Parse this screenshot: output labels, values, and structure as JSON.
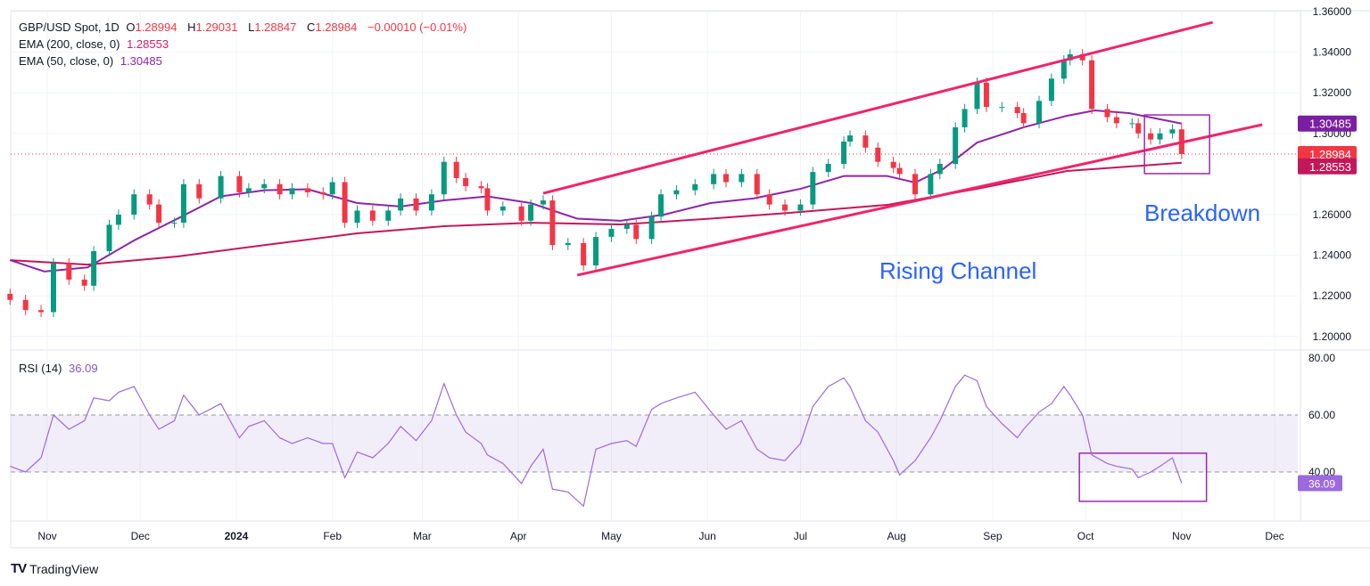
{
  "header": {
    "symbol": "GBP/USD Spot, 1D",
    "o_label": "O",
    "o": "1.28994",
    "h_label": "H",
    "h": "1.29031",
    "l_label": "L",
    "l": "1.28847",
    "c_label": "C",
    "c": "1.28984",
    "change": "−0.00010 (−0.01%)",
    "ema200_label": "EMA (200, close, 0)",
    "ema200_value": "1.28553",
    "ema50_label": "EMA (50, close, 0)",
    "ema50_value": "1.30485",
    "rsi_label": "RSI (14)",
    "rsi_value": "36.09"
  },
  "annotations": {
    "rising_channel": "Rising Channel",
    "breakdown": "Breakdown"
  },
  "brand": "TradingView",
  "colors": {
    "up": "#089981",
    "down": "#f23645",
    "ema50": "#8e24aa",
    "ema200": "#c2185b",
    "channel": "#f0246b",
    "rsi": "#9c6ade",
    "box": "#9c27b0",
    "text_blue": "#2962ff"
  },
  "chart_data": {
    "type": "candlestick",
    "price_ticks": [
      "1.36000",
      "1.34000",
      "1.32000",
      "1.30000",
      "1.26000",
      "1.24000",
      "1.22000",
      "1.20000"
    ],
    "price_range": [
      1.2,
      1.36
    ],
    "price_tags": [
      {
        "value": "1.30485",
        "color": "#7b1fa2"
      },
      {
        "value": "1.28984",
        "color": "#f23645"
      },
      {
        "value": "1.28553",
        "color": "#c2185b"
      }
    ],
    "last_close": 1.28984,
    "rsi_ticks": [
      "80.00",
      "60.00",
      "40.00"
    ],
    "rsi_band": [
      40,
      60
    ],
    "rsi_tag": "36.09",
    "time_labels": [
      {
        "label": "Nov",
        "date": "2023-11-01"
      },
      {
        "label": "Dec",
        "date": "2023-12-01"
      },
      {
        "label": "2024",
        "date": "2024-01-01",
        "bold": true
      },
      {
        "label": "Feb",
        "date": "2024-02-01"
      },
      {
        "label": "Mar",
        "date": "2024-03-01"
      },
      {
        "label": "Apr",
        "date": "2024-04-01"
      },
      {
        "label": "May",
        "date": "2024-05-01"
      },
      {
        "label": "Jun",
        "date": "2024-06-01"
      },
      {
        "label": "Jul",
        "date": "2024-07-01"
      },
      {
        "label": "Aug",
        "date": "2024-08-01"
      },
      {
        "label": "Sep",
        "date": "2024-09-01"
      },
      {
        "label": "Oct",
        "date": "2024-10-01"
      },
      {
        "label": "Nov",
        "date": "2024-11-01"
      },
      {
        "label": "Dec",
        "date": "2024-12-01"
      }
    ],
    "dates": [
      "2023-10-20",
      "2023-10-25",
      "2023-10-30",
      "2023-11-03",
      "2023-11-08",
      "2023-11-13",
      "2023-11-16",
      "2023-11-21",
      "2023-11-24",
      "2023-11-29",
      "2023-12-04",
      "2023-12-07",
      "2023-12-12",
      "2023-12-15",
      "2023-12-20",
      "2023-12-27",
      "2024-01-02",
      "2024-01-05",
      "2024-01-10",
      "2024-01-15",
      "2024-01-19",
      "2024-01-24",
      "2024-01-29",
      "2024-02-01",
      "2024-02-05",
      "2024-02-09",
      "2024-02-14",
      "2024-02-19",
      "2024-02-23",
      "2024-02-28",
      "2024-03-04",
      "2024-03-08",
      "2024-03-12",
      "2024-03-15",
      "2024-03-20",
      "2024-03-22",
      "2024-03-27",
      "2024-04-02",
      "2024-04-05",
      "2024-04-09",
      "2024-04-12",
      "2024-04-17",
      "2024-04-22",
      "2024-04-26",
      "2024-05-01",
      "2024-05-06",
      "2024-05-09",
      "2024-05-14",
      "2024-05-17",
      "2024-05-22",
      "2024-05-28",
      "2024-06-03",
      "2024-06-07",
      "2024-06-12",
      "2024-06-17",
      "2024-06-21",
      "2024-06-26",
      "2024-07-01",
      "2024-07-05",
      "2024-07-10",
      "2024-07-15",
      "2024-07-17",
      "2024-07-22",
      "2024-07-26",
      "2024-07-31",
      "2024-08-02",
      "2024-08-07",
      "2024-08-12",
      "2024-08-15",
      "2024-08-20",
      "2024-08-23",
      "2024-08-27",
      "2024-08-30",
      "2024-09-04",
      "2024-09-09",
      "2024-09-11",
      "2024-09-16",
      "2024-09-20",
      "2024-09-24",
      "2024-09-26",
      "2024-09-30",
      "2024-10-03",
      "2024-10-08",
      "2024-10-11",
      "2024-10-16",
      "2024-10-18",
      "2024-10-22",
      "2024-10-25",
      "2024-10-29",
      "2024-11-01"
    ],
    "close": [
      1.218,
      1.213,
      1.212,
      1.236,
      1.228,
      1.225,
      1.242,
      1.255,
      1.26,
      1.27,
      1.265,
      1.256,
      1.256,
      1.275,
      1.268,
      1.279,
      1.271,
      1.273,
      1.275,
      1.27,
      1.273,
      1.271,
      1.27,
      1.276,
      1.256,
      1.262,
      1.257,
      1.262,
      1.268,
      1.262,
      1.27,
      1.286,
      1.278,
      1.274,
      1.273,
      1.262,
      1.264,
      1.257,
      1.265,
      1.267,
      1.245,
      1.246,
      1.235,
      1.249,
      1.253,
      1.255,
      1.248,
      1.259,
      1.27,
      1.272,
      1.275,
      1.28,
      1.276,
      1.28,
      1.27,
      1.265,
      1.262,
      1.265,
      1.281,
      1.285,
      1.296,
      1.299,
      1.293,
      1.286,
      1.283,
      1.28,
      1.27,
      1.28,
      1.285,
      1.303,
      1.312,
      1.325,
      1.313,
      1.313,
      1.31,
      1.305,
      1.316,
      1.327,
      1.336,
      1.339,
      1.336,
      1.312,
      1.308,
      1.305,
      1.305,
      1.3,
      1.297,
      1.3,
      1.302,
      1.28984
    ],
    "rsi": [
      42,
      40,
      45,
      60,
      55,
      58,
      66,
      65,
      68,
      70,
      60,
      55,
      58,
      67,
      60,
      64,
      52,
      56,
      58,
      52,
      50,
      52,
      50,
      50,
      38,
      47,
      45,
      50,
      56,
      51,
      58,
      71,
      60,
      54,
      50,
      46,
      43,
      36,
      42,
      48,
      34,
      33,
      28,
      48,
      50,
      51,
      49,
      62,
      64,
      66,
      68,
      60,
      55,
      58,
      48,
      45,
      44,
      50,
      63,
      70,
      73,
      70,
      58,
      54,
      44,
      39,
      44,
      52,
      58,
      70,
      74,
      72,
      63,
      57,
      52,
      55,
      61,
      64,
      70,
      67,
      60,
      46,
      43,
      42,
      41,
      38,
      40,
      42,
      45,
      36.09
    ],
    "ema50": [
      {
        "date": "2023-10-20",
        "value": 1.2376
      },
      {
        "date": "2023-10-31",
        "value": 1.232
      },
      {
        "date": "2023-11-14",
        "value": 1.234
      },
      {
        "date": "2023-11-29",
        "value": 1.2473
      },
      {
        "date": "2023-12-13",
        "value": 1.258
      },
      {
        "date": "2023-12-27",
        "value": 1.269
      },
      {
        "date": "2024-01-10",
        "value": 1.272
      },
      {
        "date": "2024-01-24",
        "value": 1.2725
      },
      {
        "date": "2024-02-09",
        "value": 1.2657
      },
      {
        "date": "2024-02-23",
        "value": 1.264
      },
      {
        "date": "2024-03-08",
        "value": 1.267
      },
      {
        "date": "2024-03-22",
        "value": 1.269
      },
      {
        "date": "2024-04-05",
        "value": 1.2657
      },
      {
        "date": "2024-04-20",
        "value": 1.258
      },
      {
        "date": "2024-05-04",
        "value": 1.257
      },
      {
        "date": "2024-05-18",
        "value": 1.26
      },
      {
        "date": "2024-06-02",
        "value": 1.2657
      },
      {
        "date": "2024-06-16",
        "value": 1.268
      },
      {
        "date": "2024-07-01",
        "value": 1.2727
      },
      {
        "date": "2024-07-15",
        "value": 1.279
      },
      {
        "date": "2024-07-29",
        "value": 1.279
      },
      {
        "date": "2024-08-07",
        "value": 1.2758
      },
      {
        "date": "2024-08-16",
        "value": 1.2824
      },
      {
        "date": "2024-08-27",
        "value": 1.2955
      },
      {
        "date": "2024-09-11",
        "value": 1.303
      },
      {
        "date": "2024-09-25",
        "value": 1.3087
      },
      {
        "date": "2024-10-04",
        "value": 1.3113
      },
      {
        "date": "2024-10-15",
        "value": 1.31
      },
      {
        "date": "2024-11-01",
        "value": 1.30485
      }
    ],
    "ema200": [
      {
        "date": "2023-10-20",
        "value": 1.2376
      },
      {
        "date": "2023-11-14",
        "value": 1.2354
      },
      {
        "date": "2023-12-13",
        "value": 1.2394
      },
      {
        "date": "2024-01-10",
        "value": 1.245
      },
      {
        "date": "2024-02-09",
        "value": 1.2508
      },
      {
        "date": "2024-03-08",
        "value": 1.2543
      },
      {
        "date": "2024-04-05",
        "value": 1.256
      },
      {
        "date": "2024-05-04",
        "value": 1.2552
      },
      {
        "date": "2024-06-02",
        "value": 1.258
      },
      {
        "date": "2024-07-01",
        "value": 1.2613
      },
      {
        "date": "2024-07-29",
        "value": 1.2648
      },
      {
        "date": "2024-08-27",
        "value": 1.2727
      },
      {
        "date": "2024-09-25",
        "value": 1.2815
      },
      {
        "date": "2024-11-01",
        "value": 1.28553
      }
    ],
    "channel_upper": [
      {
        "date": "2024-04-09",
        "value": 1.2705
      },
      {
        "date": "2024-11-11",
        "value": 1.3547
      }
    ],
    "channel_lower": [
      {
        "date": "2024-04-20",
        "value": 1.2302
      },
      {
        "date": "2024-11-27",
        "value": 1.3043
      }
    ],
    "price_box": {
      "from": "2024-10-20",
      "to": "2024-11-10",
      "high": 1.3091,
      "low": 1.2802
    },
    "rsi_box": {
      "from": "2024-09-29",
      "to": "2024-11-09",
      "high": 46.6,
      "low": 29.7
    }
  }
}
